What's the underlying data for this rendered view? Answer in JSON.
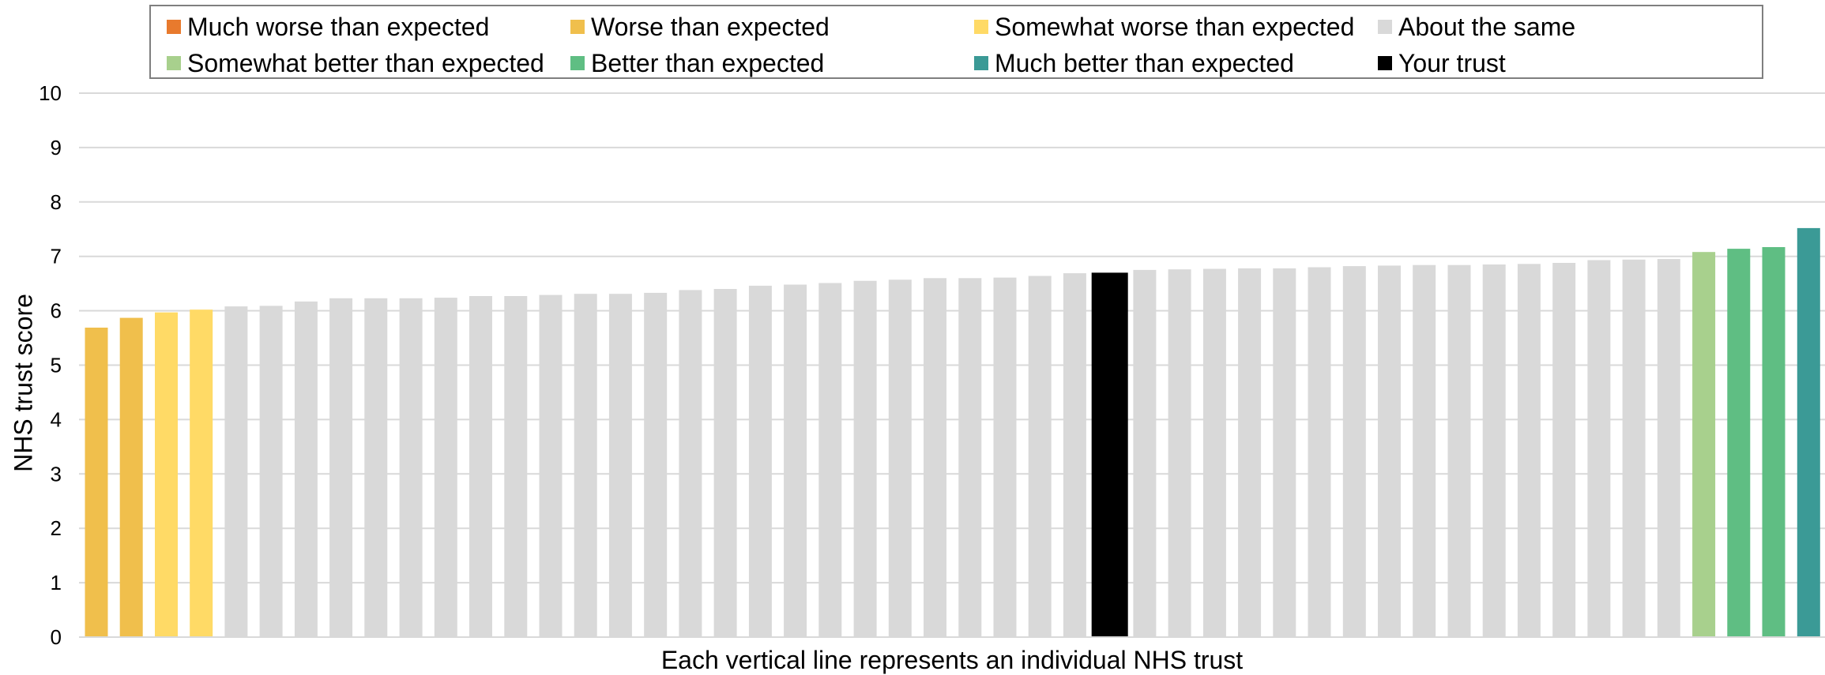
{
  "legend": {
    "items": [
      {
        "label": "Much worse than expected",
        "color": "#e87a2d"
      },
      {
        "label": "Worse than expected",
        "color": "#f0bf4c"
      },
      {
        "label": "Somewhat worse than expected",
        "color": "#ffda66"
      },
      {
        "label": "About the same",
        "color": "#d9d9d9"
      },
      {
        "label": "Somewhat better than expected",
        "color": "#a8d08d"
      },
      {
        "label": "Better than expected",
        "color": "#5fbe83"
      },
      {
        "label": "Much better than expected",
        "color": "#3b9a96"
      },
      {
        "label": "Your trust",
        "color": "#000000"
      }
    ]
  },
  "chart_data": {
    "type": "bar",
    "title": "",
    "xlabel": "Each vertical line represents an individual NHS trust",
    "ylabel": "NHS trust score",
    "ylim": [
      0,
      10
    ],
    "yticks": [
      0,
      1,
      2,
      3,
      4,
      5,
      6,
      7,
      8,
      9,
      10
    ],
    "grid": true,
    "legend_position": "top",
    "values": [
      5.69,
      5.87,
      5.97,
      6.02,
      6.08,
      6.09,
      6.17,
      6.23,
      6.23,
      6.23,
      6.24,
      6.27,
      6.27,
      6.29,
      6.31,
      6.31,
      6.33,
      6.38,
      6.4,
      6.46,
      6.48,
      6.51,
      6.55,
      6.57,
      6.6,
      6.6,
      6.61,
      6.64,
      6.69,
      6.7,
      6.75,
      6.76,
      6.77,
      6.78,
      6.78,
      6.8,
      6.82,
      6.83,
      6.84,
      6.84,
      6.85,
      6.86,
      6.88,
      6.93,
      6.94,
      6.95,
      7.08,
      7.14,
      7.17,
      7.52
    ],
    "categories_band": [
      "worse",
      "worse",
      "somewhat_worse",
      "somewhat_worse",
      "same",
      "same",
      "same",
      "same",
      "same",
      "same",
      "same",
      "same",
      "same",
      "same",
      "same",
      "same",
      "same",
      "same",
      "same",
      "same",
      "same",
      "same",
      "same",
      "same",
      "same",
      "same",
      "same",
      "same",
      "same",
      "your_trust",
      "same",
      "same",
      "same",
      "same",
      "same",
      "same",
      "same",
      "same",
      "same",
      "same",
      "same",
      "same",
      "same",
      "same",
      "same",
      "same",
      "somewhat_better",
      "better",
      "better",
      "much_better"
    ],
    "band_colors": {
      "much_worse": "#e87a2d",
      "worse": "#f0bf4c",
      "somewhat_worse": "#ffda66",
      "same": "#d9d9d9",
      "somewhat_better": "#a8d08d",
      "better": "#5fbe83",
      "much_better": "#3b9a96",
      "your_trust": "#000000"
    }
  }
}
